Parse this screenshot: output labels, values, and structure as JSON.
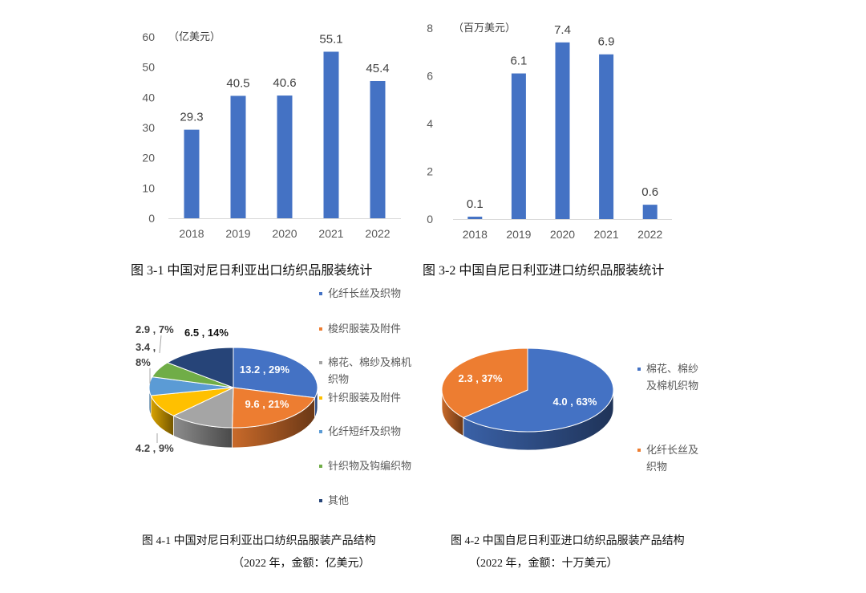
{
  "chart_data": [
    {
      "type": "bar",
      "unit_label": "（亿美元）",
      "categories": [
        "2018",
        "2019",
        "2020",
        "2021",
        "2022"
      ],
      "values": [
        29.3,
        40.5,
        40.6,
        55.1,
        45.4
      ],
      "ylim": [
        0,
        60
      ],
      "yticks": [
        0,
        10,
        20,
        30,
        40,
        50,
        60
      ],
      "color": "#4472C4",
      "grid": false,
      "caption": "图 3-1  中国对尼日利亚出口纺织品服装统计"
    },
    {
      "type": "bar",
      "unit_label": "（百万美元）",
      "categories": [
        "2018",
        "2019",
        "2020",
        "2021",
        "2022"
      ],
      "values": [
        0.1,
        6.1,
        7.4,
        6.9,
        0.6
      ],
      "ylim": [
        0,
        8
      ],
      "yticks": [
        0,
        2,
        4,
        6,
        8
      ],
      "color": "#4472C4",
      "grid": false,
      "caption": "图 3-2  中国自尼日利亚进口纺织品服装统计"
    },
    {
      "type": "pie",
      "style": "3d",
      "caption": "图 4-1  中国对尼日利亚出口纺织品服装产品结构",
      "subcaption": "（2022 年，金额：亿美元）",
      "legend_position": "right",
      "slices": [
        {
          "name": "化纤长丝及织物",
          "value": 13.2,
          "label": "13.2 , 29%",
          "color": "#4472C4"
        },
        {
          "name": "梭织服装及附件",
          "value": 9.6,
          "label": "9.6 , 21%",
          "color": "#ED7D31"
        },
        {
          "name": "棉花、棉纱及棉机织物",
          "value": 5.6,
          "label": "",
          "color": "#A5A5A5"
        },
        {
          "name": "针织服装及附件",
          "value": 4.2,
          "label": "4.2 , 9%",
          "color": "#FFC000"
        },
        {
          "name": "化纤短纤及织物",
          "value": 3.4,
          "label": "3.4 ,\n8%",
          "color": "#5B9BD5"
        },
        {
          "name": "针织物及钩编织物",
          "value": 2.9,
          "label": "2.9 , 7%",
          "color": "#70AD47"
        },
        {
          "name": "其他",
          "value": 6.5,
          "label": "6.5 , 14%",
          "color": "#264478"
        }
      ]
    },
    {
      "type": "pie",
      "style": "3d",
      "caption": "图 4-2  中国自尼日利亚进口纺织品服装产品结构",
      "subcaption": "（2022 年，金额：十万美元）",
      "legend_position": "right",
      "slices": [
        {
          "name": "棉花、棉纱及棉机织物",
          "value": 4.0,
          "label": "4.0 , 63%",
          "color": "#4472C4"
        },
        {
          "name": "化纤长丝及织物",
          "value": 2.3,
          "label": "2.3 , 37%",
          "color": "#ED7D31"
        }
      ]
    }
  ]
}
